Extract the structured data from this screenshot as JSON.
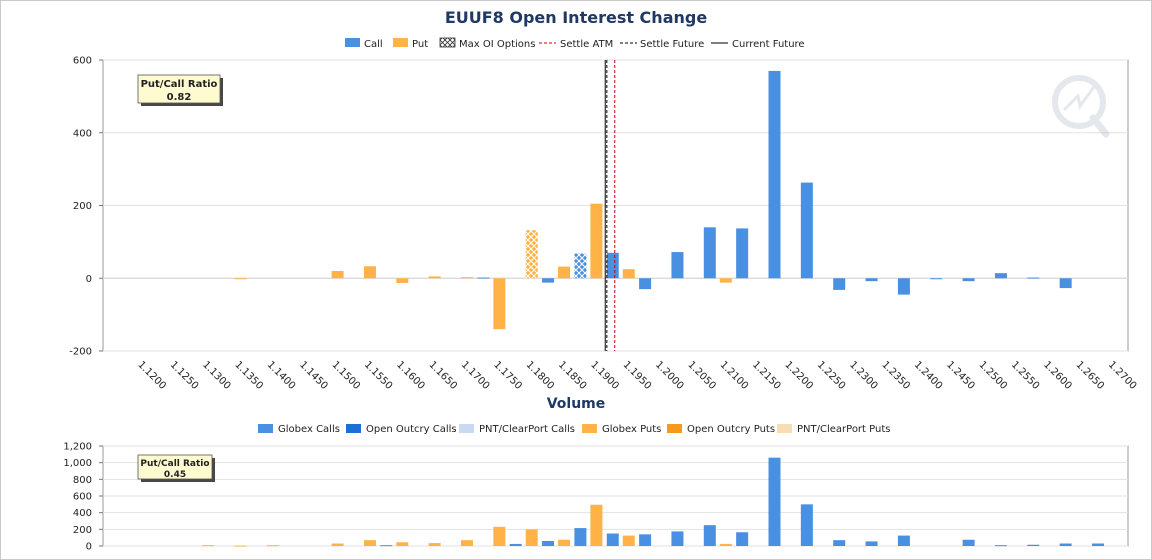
{
  "chart_data": [
    {
      "type": "bar",
      "title": "EUUF8 Open Interest Change",
      "categories": [
        "1.1200",
        "1.1250",
        "1.1300",
        "1.1350",
        "1.1400",
        "1.1450",
        "1.1500",
        "1.1550",
        "1.1600",
        "1.1650",
        "1.1700",
        "1.1750",
        "1.1800",
        "1.1850",
        "1.1900",
        "1.1950",
        "1.2000",
        "1.2050",
        "1.2100",
        "1.2150",
        "1.2200",
        "1.2250",
        "1.2300",
        "1.2350",
        "1.2400",
        "1.2450",
        "1.2500",
        "1.2550",
        "1.2600",
        "1.2650",
        "1.2700"
      ],
      "series": [
        {
          "name": "Call",
          "color": "#4a90e2",
          "values": [
            0,
            0,
            0,
            0,
            0,
            0,
            0,
            0,
            0,
            0,
            0,
            2,
            0,
            -12,
            68,
            70,
            -30,
            72,
            140,
            137,
            570,
            263,
            -32,
            -8,
            -45,
            -2,
            -8,
            14,
            2,
            -27,
            0
          ]
        },
        {
          "name": "Put",
          "color": "#ffb347",
          "values": [
            0,
            0,
            0,
            -2,
            0,
            0,
            20,
            33,
            -13,
            5,
            3,
            -140,
            132,
            32,
            205,
            25,
            0,
            0,
            -12,
            0,
            0,
            0,
            0,
            0,
            0,
            0,
            0,
            0,
            0,
            0,
            0
          ]
        }
      ],
      "max_oi": [
        {
          "series": "Put",
          "category": "1.1800"
        },
        {
          "series": "Call",
          "category": "1.1900"
        }
      ],
      "legend": [
        "Call",
        "Put",
        "Max OI Options",
        "Settle ATM",
        "Settle Future",
        "Current Future"
      ],
      "lines": {
        "settle_atm": 1.195,
        "settle_future": 1.19285,
        "current_future": 1.1926
      },
      "ylim": [
        -200,
        600
      ],
      "yticks": [
        -200,
        0,
        200,
        400,
        600
      ],
      "grid": true,
      "legend_position": "top",
      "put_call_label": "Put/Call Ratio",
      "put_call_value": "0.82"
    },
    {
      "type": "bar",
      "title": "Volume",
      "categories": [
        "1.1200",
        "1.1250",
        "1.1300",
        "1.1350",
        "1.1400",
        "1.1450",
        "1.1500",
        "1.1550",
        "1.1600",
        "1.1650",
        "1.1700",
        "1.1750",
        "1.1800",
        "1.1850",
        "1.1900",
        "1.1950",
        "1.2000",
        "1.2050",
        "1.2100",
        "1.2150",
        "1.2200",
        "1.2250",
        "1.2300",
        "1.2350",
        "1.2400",
        "1.2450",
        "1.2500",
        "1.2550",
        "1.2600",
        "1.2650",
        "1.2700"
      ],
      "series": [
        {
          "name": "Globex Calls",
          "color": "#4a90e2",
          "values": [
            0,
            0,
            0,
            0,
            0,
            0,
            0,
            0,
            10,
            0,
            0,
            0,
            25,
            60,
            215,
            150,
            140,
            175,
            250,
            165,
            1060,
            500,
            70,
            55,
            125,
            0,
            75,
            10,
            15,
            30,
            30
          ]
        },
        {
          "name": "Globex Puts",
          "color": "#ffb347",
          "values": [
            0,
            0,
            10,
            5,
            10,
            0,
            30,
            70,
            45,
            35,
            70,
            230,
            200,
            75,
            495,
            125,
            0,
            0,
            25,
            0,
            0,
            0,
            0,
            0,
            0,
            0,
            0,
            0,
            0,
            0,
            0
          ]
        }
      ],
      "legend": [
        "Globex Calls",
        "Open Outcry Calls",
        "PNT/ClearPort Calls",
        "Globex Puts",
        "Open Outcry Puts",
        "PNT/ClearPort Puts"
      ],
      "legend_colors": [
        "#4a90e2",
        "#1a6fd8",
        "#c9d9f2",
        "#ffb347",
        "#f59a1a",
        "#f8dcb4"
      ],
      "ylim": [
        0,
        1200
      ],
      "yticks": [
        0,
        200,
        400,
        600,
        800,
        1000,
        1200
      ],
      "ytick_labels": [
        "0",
        "200",
        "400",
        "600",
        "800",
        "1,000",
        "1,200"
      ],
      "grid": true,
      "legend_position": "top",
      "put_call_label": "Put/Call Ratio",
      "put_call_value": "0.45"
    }
  ]
}
